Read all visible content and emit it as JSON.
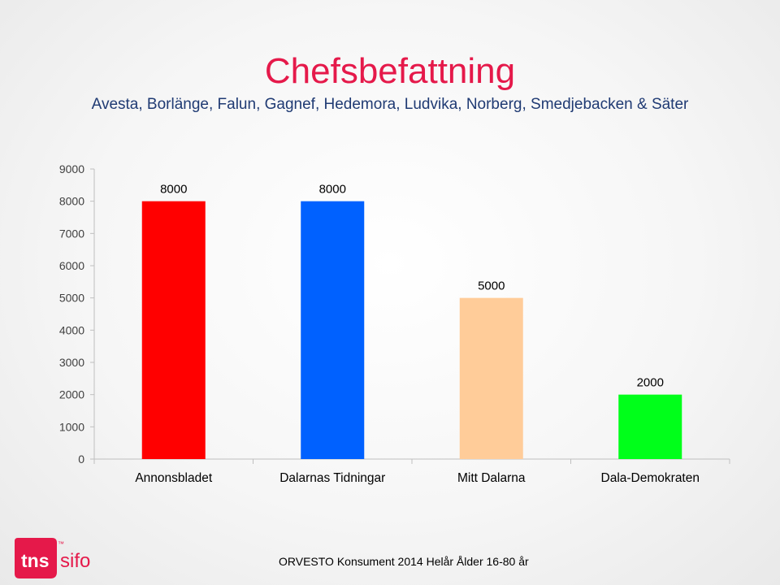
{
  "title": "Chefsbefattning",
  "subtitle": "Avesta, Borlänge, Falun, Gagnef, Hedemora, Ludvika, Norberg, Smedjebacken & Säter",
  "footer": "ORVESTO Konsument 2014 Helår Ålder 16-80 år",
  "logo": {
    "left_text": "tns",
    "right_text": "sifo",
    "mark": "™",
    "color": "#e5194a"
  },
  "chart_data": {
    "type": "bar",
    "categories": [
      "Annonsbladet",
      "Dalarnas Tidningar",
      "Mitt Dalarna",
      "Dala-Demokraten"
    ],
    "values": [
      8000,
      8000,
      5000,
      2000
    ],
    "colors": [
      "#ff0000",
      "#0061ff",
      "#ffcc99",
      "#00ff1a"
    ],
    "ylim": [
      0,
      9000
    ],
    "yticks": [
      0,
      1000,
      2000,
      3000,
      4000,
      5000,
      6000,
      7000,
      8000,
      9000
    ],
    "grid": false,
    "legend": "none"
  }
}
